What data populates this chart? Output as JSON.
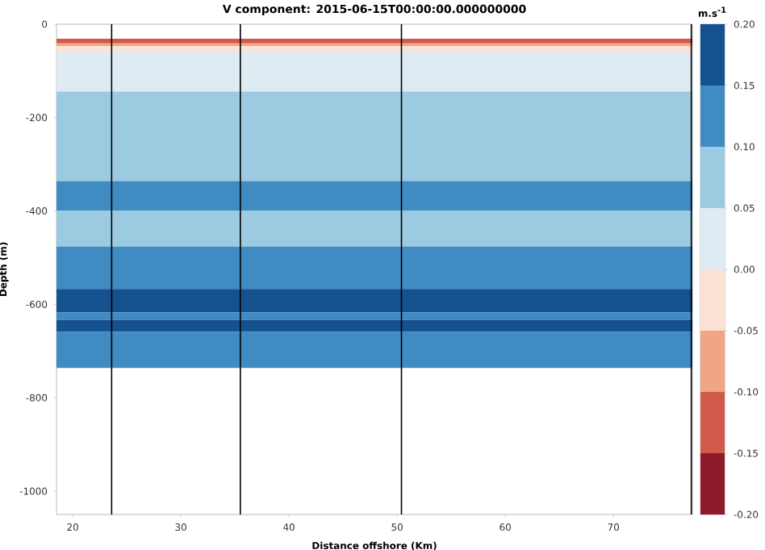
{
  "chart_data": {
    "type": "heatmap",
    "title": "V component: 2015-06-15T00:00:00.000000000",
    "xlabel": "Distance offshore (Km)",
    "ylabel": "Depth (m)",
    "clabel": "m.s$^{-1}$",
    "xlim": [
      18.5,
      77.3
    ],
    "xticks": [
      20,
      30,
      40,
      50,
      60,
      70
    ],
    "ylim": [
      -1050,
      0
    ],
    "yticks": [
      -1000,
      -800,
      -600,
      -400,
      -200,
      0
    ],
    "bands": [
      {
        "axis": "y",
        "from": -31,
        "to": -41,
        "color": "#d05b4b"
      },
      {
        "axis": "y",
        "from": -41,
        "to": -47,
        "color": "#f2a585"
      },
      {
        "axis": "y",
        "from": -47,
        "to": -58,
        "color": "#fbe2d4"
      },
      {
        "axis": "y",
        "from": -58,
        "to": -144,
        "color": "#deebf2"
      },
      {
        "axis": "y",
        "from": -144,
        "to": -336,
        "color": "#9ccae1"
      },
      {
        "axis": "y",
        "from": -336,
        "to": -400,
        "color": "#3f8bc2"
      },
      {
        "axis": "y",
        "from": -400,
        "to": -476,
        "color": "#9ccae1"
      },
      {
        "axis": "y",
        "from": -476,
        "to": -567,
        "color": "#3f8bc2"
      },
      {
        "axis": "y",
        "from": -567,
        "to": -617,
        "color": "#15508f"
      },
      {
        "axis": "y",
        "from": -617,
        "to": -633,
        "color": "#3f8bc2"
      },
      {
        "axis": "y",
        "from": -633,
        "to": -659,
        "color": "#15508f"
      },
      {
        "axis": "y",
        "from": -659,
        "to": -736,
        "color": "#3f8bc2"
      }
    ],
    "ref_lines": [
      {
        "axis": "x",
        "value": 23.6,
        "color": "#000000"
      },
      {
        "axis": "x",
        "value": 35.5,
        "color": "#000000"
      },
      {
        "axis": "x",
        "value": 50.4,
        "color": "#000000"
      },
      {
        "axis": "x",
        "value": 77.2,
        "color": "#000000"
      }
    ],
    "clim": [
      -0.2,
      0.2
    ],
    "cticks": [
      {
        "value": -0.2,
        "label": "-0.20"
      },
      {
        "value": -0.15,
        "label": "-0.15"
      },
      {
        "value": -0.1,
        "label": "-0.10"
      },
      {
        "value": -0.05,
        "label": "-0.05"
      },
      {
        "value": 0,
        "label": "0.00"
      },
      {
        "value": 0.05,
        "label": "0.05"
      },
      {
        "value": 0.1,
        "label": "0.10"
      },
      {
        "value": 0.15,
        "label": "0.15"
      },
      {
        "value": 0.2,
        "label": "0.20"
      }
    ],
    "colors": [
      "#8e1b2c",
      "#d05b4b",
      "#f2a585",
      "#fbe2d4",
      "#deebf2",
      "#9ccae1",
      "#3f8bc2",
      "#15508f"
    ],
    "grid": false
  }
}
